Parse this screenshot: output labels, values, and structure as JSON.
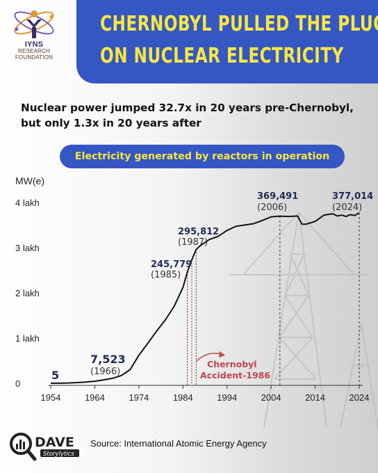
{
  "header": {
    "logo_name": "IYNS",
    "logo_caption": "RESEARCH FOUNDATION",
    "title_line1": "CHERNOBYL PULLED THE PLUG",
    "title_line2": "ON NUCLEAR ELECTRICITY",
    "banner_color": "#3457c4",
    "title_color": "#f7e641"
  },
  "subtitle_line1": "Nuclear power jumped 32.7x in 20 years pre-Chernobyl,",
  "subtitle_line2": "but only 1.3x in 20 years after",
  "pill_label": "Electricity generated by reactors in operation",
  "chart_data": {
    "type": "line",
    "ylabel": "MW(e)",
    "ylim": [
      0,
      400000
    ],
    "xlim": [
      1954,
      2024
    ],
    "y_ticks": [
      {
        "value": 0,
        "label": "0"
      },
      {
        "value": 100000,
        "label": "1 lakh"
      },
      {
        "value": 200000,
        "label": "2 lakh"
      },
      {
        "value": 300000,
        "label": "3 lakh"
      },
      {
        "value": 400000,
        "label": "4 lakh"
      }
    ],
    "x_ticks": [
      1954,
      1964,
      1974,
      1984,
      1994,
      2004,
      2014,
      2024
    ],
    "x": [
      1954,
      1956,
      1958,
      1960,
      1962,
      1964,
      1966,
      1968,
      1970,
      1972,
      1974,
      1976,
      1978,
      1980,
      1982,
      1984,
      1985,
      1986,
      1987,
      1988,
      1990,
      1992,
      1994,
      1996,
      1998,
      2000,
      2002,
      2004,
      2006,
      2008,
      2010,
      2011,
      2012,
      2014,
      2016,
      2018,
      2019,
      2020,
      2021,
      2022,
      2023,
      2024
    ],
    "values": [
      5,
      80,
      600,
      1500,
      2800,
      4500,
      7523,
      11000,
      17000,
      30000,
      62000,
      88000,
      115000,
      140000,
      170000,
      212000,
      245779,
      273000,
      295812,
      305000,
      318000,
      325000,
      338000,
      347000,
      350000,
      353000,
      360000,
      368000,
      369491,
      369000,
      370000,
      352000,
      352000,
      358000,
      372000,
      375000,
      370000,
      372000,
      369000,
      373000,
      371000,
      377014
    ],
    "line_color": "#111111",
    "data_labels": [
      {
        "value": "5",
        "year": ""
      },
      {
        "value": "7,523",
        "year": "(1966)"
      },
      {
        "value": "245,779",
        "year": "(1985)"
      },
      {
        "value": "295,812",
        "year": "(1987)"
      },
      {
        "value": "369,491",
        "year": "(2006)"
      },
      {
        "value": "377,014",
        "year": "(2024)"
      }
    ],
    "annotation": {
      "text_line1": "Chernobyl",
      "text_line2": "Accident-1986",
      "color": "#c2454b"
    },
    "grid": false
  },
  "footer": {
    "brand": "DAVE",
    "brand_sub": "Storylytics",
    "source": "Source: International Atomic Energy Agency"
  }
}
